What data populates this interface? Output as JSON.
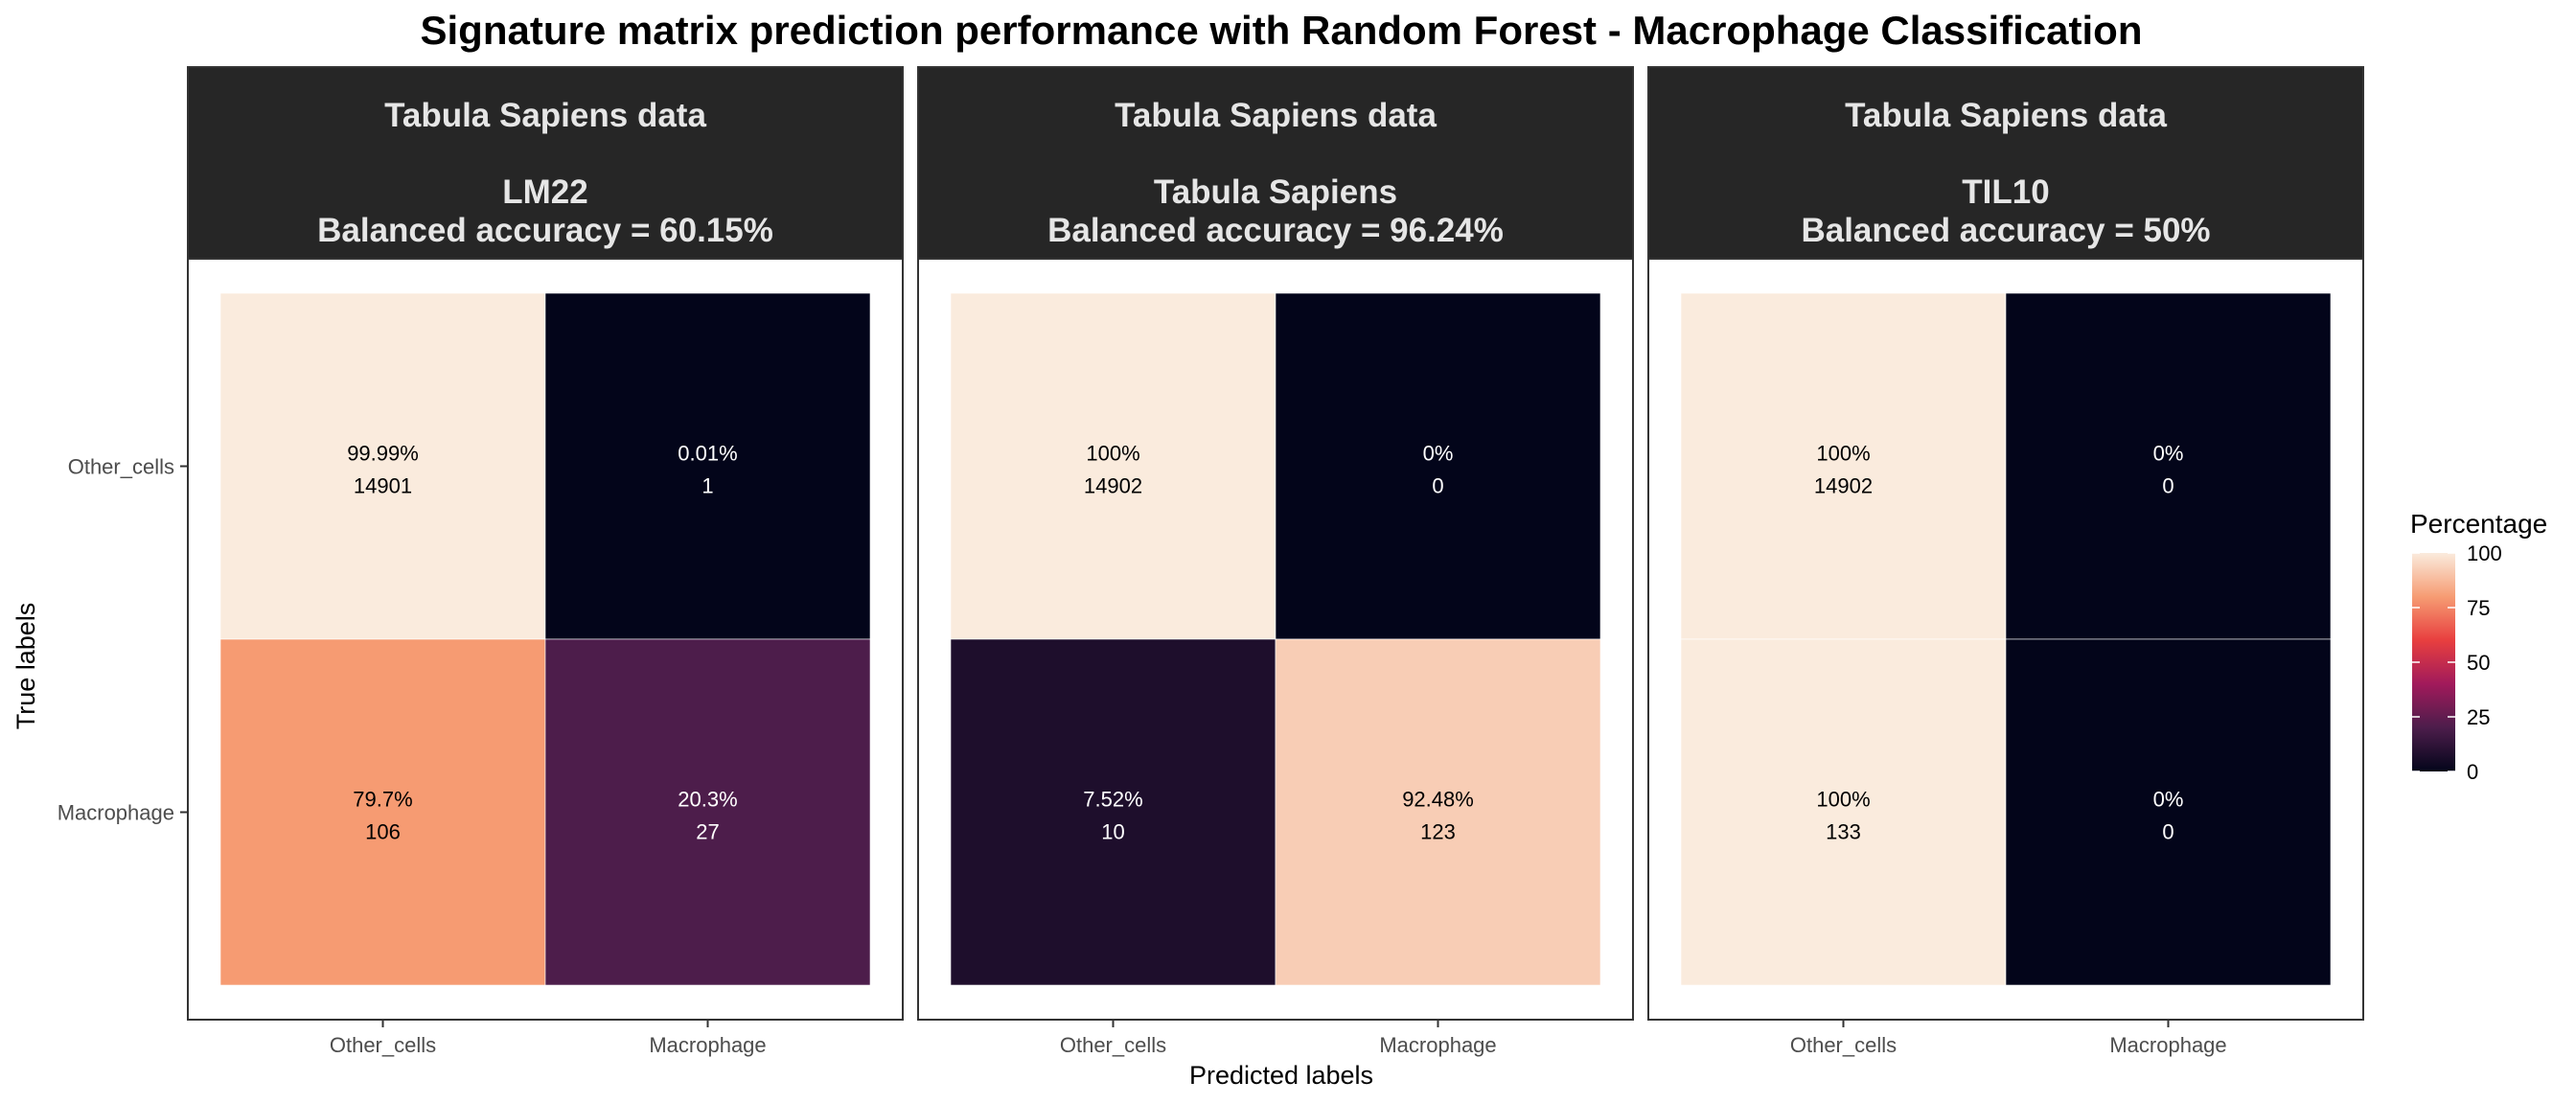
{
  "chart_data": {
    "type": "heatmap",
    "title": "Signature matrix prediction performance with Random Forest - Macrophage Classification",
    "xlabel": "Predicted labels",
    "ylabel": "True labels",
    "x_categories": [
      "Other_cells",
      "Macrophage"
    ],
    "y_categories": [
      "Other_cells",
      "Macrophage"
    ],
    "legend": {
      "title": "Percentage",
      "ticks": [
        "0",
        "25",
        "50",
        "75",
        "100"
      ],
      "range": [
        0,
        100
      ],
      "placement": "right"
    },
    "panels": [
      {
        "strip": [
          "Tabula Sapiens data",
          "LM22",
          "Balanced accuracy = 60.15%"
        ],
        "cells": [
          {
            "true": "Other_cells",
            "pred": "Other_cells",
            "pct": 99.99,
            "pct_label": "99.99%",
            "count": "14901"
          },
          {
            "true": "Other_cells",
            "pred": "Macrophage",
            "pct": 0.01,
            "pct_label": "0.01%",
            "count": "1"
          },
          {
            "true": "Macrophage",
            "pred": "Other_cells",
            "pct": 79.7,
            "pct_label": "79.7%",
            "count": "106"
          },
          {
            "true": "Macrophage",
            "pred": "Macrophage",
            "pct": 20.3,
            "pct_label": "20.3%",
            "count": "27"
          }
        ]
      },
      {
        "strip": [
          "Tabula Sapiens data",
          "Tabula Sapiens",
          "Balanced accuracy = 96.24%"
        ],
        "cells": [
          {
            "true": "Other_cells",
            "pred": "Other_cells",
            "pct": 100,
            "pct_label": "100%",
            "count": "14902"
          },
          {
            "true": "Other_cells",
            "pred": "Macrophage",
            "pct": 0,
            "pct_label": "0%",
            "count": "0"
          },
          {
            "true": "Macrophage",
            "pred": "Other_cells",
            "pct": 7.52,
            "pct_label": "7.52%",
            "count": "10"
          },
          {
            "true": "Macrophage",
            "pred": "Macrophage",
            "pct": 92.48,
            "pct_label": "92.48%",
            "count": "123"
          }
        ]
      },
      {
        "strip": [
          "Tabula Sapiens data",
          "TIL10",
          "Balanced accuracy = 50%"
        ],
        "cells": [
          {
            "true": "Other_cells",
            "pred": "Other_cells",
            "pct": 100,
            "pct_label": "100%",
            "count": "14902"
          },
          {
            "true": "Other_cells",
            "pred": "Macrophage",
            "pct": 0,
            "pct_label": "0%",
            "count": "0"
          },
          {
            "true": "Macrophage",
            "pred": "Other_cells",
            "pct": 100,
            "pct_label": "100%",
            "count": "133"
          },
          {
            "true": "Macrophage",
            "pred": "Macrophage",
            "pct": 0,
            "pct_label": "0%",
            "count": "0"
          }
        ]
      }
    ],
    "colors": {
      "scale": [
        "#03051a",
        "#4c1d4b",
        "#a11a5b",
        "#e83f3f",
        "#f69c73",
        "#faebdd"
      ],
      "strip_background": "#262626",
      "panel_border": "#333333"
    }
  }
}
